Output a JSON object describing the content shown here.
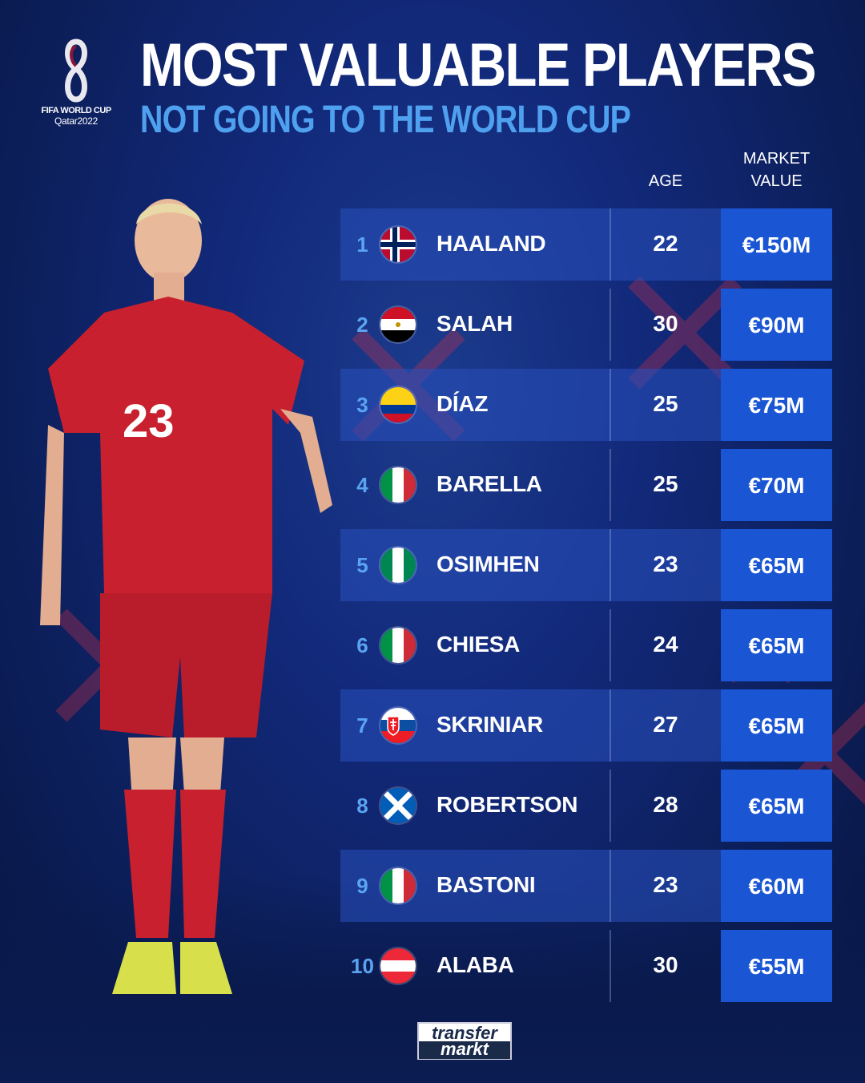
{
  "logo": {
    "line1": "FIFA WORLD CUP",
    "line2": "Qatar2022"
  },
  "title": "MOST VALUABLE PLAYERS",
  "subtitle": "NOT GOING TO THE WORLD CUP",
  "headers": {
    "age": "AGE",
    "market_value_1": "MARKET",
    "market_value_2": "VALUE"
  },
  "players": [
    {
      "rank": "1",
      "flag": "norway",
      "name": "HAALAND",
      "age": "22",
      "value": "€150M"
    },
    {
      "rank": "2",
      "flag": "egypt",
      "name": "SALAH",
      "age": "30",
      "value": "€90M"
    },
    {
      "rank": "3",
      "flag": "colombia",
      "name": "DÍAZ",
      "age": "25",
      "value": "€75M"
    },
    {
      "rank": "4",
      "flag": "italy",
      "name": "BARELLA",
      "age": "25",
      "value": "€70M"
    },
    {
      "rank": "5",
      "flag": "nigeria",
      "name": "OSIMHEN",
      "age": "23",
      "value": "€65M"
    },
    {
      "rank": "6",
      "flag": "italy",
      "name": "CHIESA",
      "age": "24",
      "value": "€65M"
    },
    {
      "rank": "7",
      "flag": "slovakia",
      "name": "SKRINIAR",
      "age": "27",
      "value": "€65M"
    },
    {
      "rank": "8",
      "flag": "scotland",
      "name": "ROBERTSON",
      "age": "28",
      "value": "€65M"
    },
    {
      "rank": "9",
      "flag": "italy",
      "name": "BASTONI",
      "age": "23",
      "value": "€60M"
    },
    {
      "rank": "10",
      "flag": "austria",
      "name": "ALABA",
      "age": "30",
      "value": "€55M"
    }
  ],
  "shirt_number": "23",
  "brand": {
    "line1": "transfer",
    "line2": "markt"
  },
  "colors": {
    "background": "#12297a",
    "title": "#ffffff",
    "subtitle": "#4fa1f0",
    "value_cell": "#1a55d4",
    "rank": "#5aa4f2"
  }
}
